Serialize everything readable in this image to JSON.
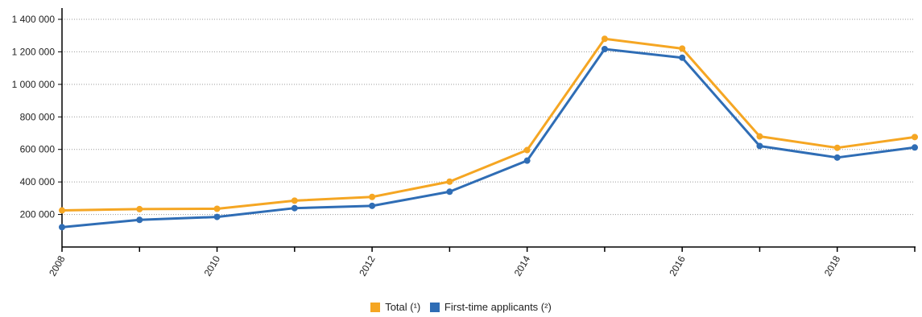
{
  "chart_data": {
    "type": "line",
    "x": [
      2008,
      2009,
      2010,
      2011,
      2012,
      2013,
      2014,
      2015,
      2016,
      2017,
      2018,
      2019
    ],
    "x_tick_labels": [
      "2008",
      "2010",
      "2012",
      "2014",
      "2016",
      "2018"
    ],
    "y_ticks": [
      200000,
      400000,
      600000,
      800000,
      1000000,
      1200000,
      1400000
    ],
    "y_tick_labels": [
      "200 000",
      "400 000",
      "600 000",
      "800 000",
      "1 000 000",
      "1 200 000",
      "1 400 000"
    ],
    "ylim": [
      0,
      1400000
    ],
    "xlim": [
      2008,
      2019
    ],
    "grid": "horizontal dotted",
    "legend_position": "bottom-center",
    "series": [
      {
        "name": "Total (¹)",
        "color": "#f5a623",
        "values": [
          225000,
          233000,
          235000,
          285000,
          308000,
          402000,
          596000,
          1280000,
          1220000,
          680000,
          610000,
          676000
        ]
      },
      {
        "name": "First-time applicants (²)",
        "color": "#2f6db5",
        "values": [
          122000,
          167000,
          185000,
          239000,
          253000,
          340000,
          531000,
          1217000,
          1164000,
          621000,
          550000,
          612000
        ]
      }
    ]
  }
}
